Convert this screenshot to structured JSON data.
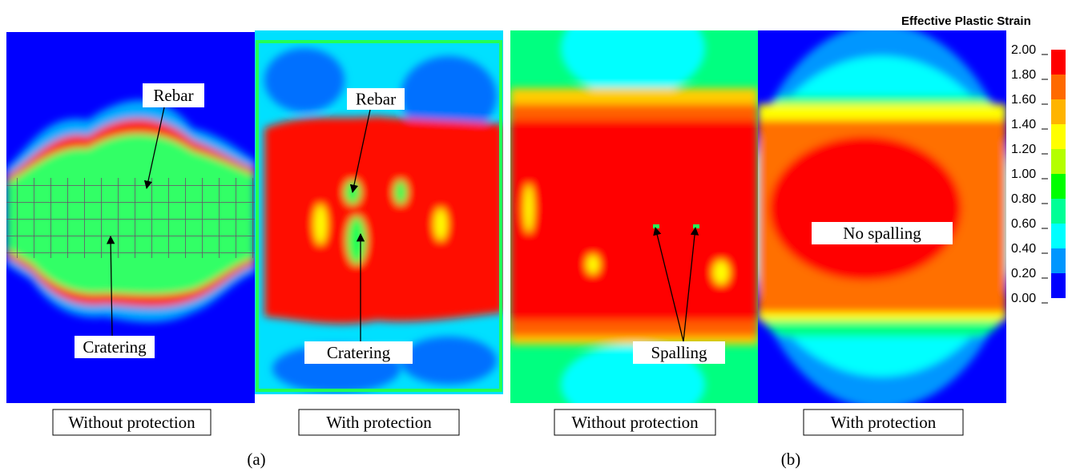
{
  "panels": [
    {
      "caption": "Without protection",
      "labels": [
        "Rebar",
        "Cratering"
      ]
    },
    {
      "caption": "With protection",
      "labels": [
        "Rebar",
        "Cratering"
      ]
    },
    {
      "caption": "Without protection",
      "labels": [
        "Spalling"
      ]
    },
    {
      "caption": "With protection",
      "labels": [
        "No spalling"
      ]
    }
  ],
  "subfigures": [
    "(a)",
    "(b)"
  ],
  "legend": {
    "title": "Effective Plastic Strain",
    "ticks": [
      "2.00",
      "1.80",
      "1.60",
      "1.40",
      "1.20",
      "1.00",
      "0.80",
      "0.60",
      "0.40",
      "0.20",
      "0.00"
    ],
    "colors": [
      "#ff0000",
      "#ff6a00",
      "#ffb400",
      "#ffff00",
      "#b4ff00",
      "#00ff00",
      "#00ff96",
      "#00ffff",
      "#0096ff",
      "#0000ff"
    ]
  }
}
